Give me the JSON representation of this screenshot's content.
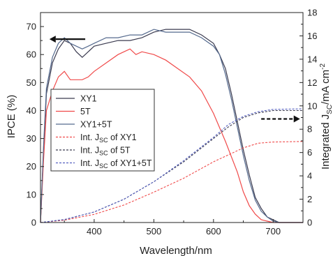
{
  "chart_data": {
    "type": "line",
    "xlabel": "Wavelength/nm",
    "ylabel_left": "IPCE (%)",
    "ylabel_right": "Integrated J",
    "ylabel_right_sub": "SC",
    "ylabel_right_unit": "/mA cm",
    "ylabel_right_sup": "-2",
    "xlim": [
      310,
      750
    ],
    "ylim_left": [
      0,
      75
    ],
    "ylim_right": [
      0,
      18
    ],
    "x_ticks": [
      400,
      500,
      600,
      700
    ],
    "y_ticks_left": [
      0,
      10,
      20,
      30,
      40,
      50,
      60,
      70
    ],
    "y_ticks_right": [
      0,
      2,
      4,
      6,
      8,
      10,
      12,
      14,
      16,
      18
    ],
    "legend": [
      {
        "name": "XY1",
        "color": "#3a3a4f",
        "dash": false,
        "sub": ""
      },
      {
        "name": "5T",
        "color": "#f04a4a",
        "dash": false,
        "sub": ""
      },
      {
        "name": "XY1+5T",
        "color": "#556a8e",
        "dash": false,
        "sub": ""
      },
      {
        "name": "Int. J",
        "sub": "SC",
        "tail": " of XY1",
        "color": "#f04a4a",
        "dash": true
      },
      {
        "name": "Int. J",
        "sub": "SC",
        "tail": " of 5T",
        "color": "#3a3a4f",
        "dash": true
      },
      {
        "name": "Int. J",
        "sub": "SC",
        "tail": " of XY1+5T",
        "color": "#5560c0",
        "dash": true
      }
    ],
    "series": [
      {
        "name": "XY1",
        "axis": "left",
        "color": "#3a3a4f",
        "dash": false,
        "x": [
          310,
          315,
          320,
          330,
          340,
          350,
          360,
          370,
          380,
          390,
          400,
          420,
          440,
          460,
          480,
          500,
          520,
          540,
          560,
          580,
          600,
          610,
          620,
          630,
          640,
          650,
          660,
          670,
          680,
          690,
          700,
          710,
          720,
          750
        ],
        "y": [
          0,
          25,
          46,
          57,
          62,
          65,
          64,
          61,
          59,
          61,
          63,
          64,
          65,
          65,
          66,
          68,
          69,
          69,
          69,
          67,
          64,
          60,
          55,
          46,
          36,
          26,
          17,
          9,
          5,
          2,
          1,
          0,
          0,
          0
        ]
      },
      {
        "name": "5T",
        "axis": "left",
        "color": "#f04a4a",
        "dash": false,
        "x": [
          310,
          315,
          320,
          330,
          340,
          350,
          360,
          370,
          380,
          390,
          400,
          420,
          440,
          460,
          470,
          480,
          500,
          520,
          540,
          560,
          580,
          600,
          620,
          640,
          650,
          660,
          670,
          680,
          690,
          700,
          710,
          720,
          750
        ],
        "y": [
          0,
          22,
          40,
          47,
          52,
          54,
          51,
          51,
          51,
          52,
          54,
          57,
          60,
          62,
          60,
          61,
          60,
          58,
          55,
          52,
          47,
          39,
          29,
          18,
          11,
          6,
          3,
          1,
          0.5,
          0,
          0,
          0,
          0
        ]
      },
      {
        "name": "XY1+5T",
        "axis": "left",
        "color": "#556a8e",
        "dash": false,
        "x": [
          310,
          315,
          320,
          330,
          340,
          350,
          360,
          370,
          380,
          390,
          400,
          420,
          440,
          460,
          480,
          500,
          520,
          540,
          560,
          580,
          600,
          610,
          620,
          630,
          640,
          650,
          660,
          670,
          680,
          690,
          700,
          710,
          720,
          750
        ],
        "y": [
          0,
          27,
          48,
          59,
          64,
          66,
          64,
          63,
          62,
          63,
          64,
          66,
          66,
          67,
          67,
          69,
          68,
          68,
          68,
          66,
          63,
          60,
          53,
          44,
          34,
          24,
          15,
          8,
          4,
          2,
          0.5,
          0,
          0,
          0
        ]
      },
      {
        "name": "Int. JSC of XY1",
        "axis": "right",
        "color": "#f04a4a",
        "dash": true,
        "x": [
          310,
          350,
          400,
          450,
          500,
          550,
          600,
          625,
          650,
          675,
          700,
          750
        ],
        "y": [
          0,
          0.2,
          0.7,
          1.5,
          2.6,
          3.8,
          5.2,
          5.8,
          6.4,
          6.8,
          6.9,
          6.95
        ]
      },
      {
        "name": "Int. JSC of 5T",
        "axis": "right",
        "color": "#3a3a4f",
        "dash": true,
        "x": [
          310,
          350,
          400,
          450,
          500,
          550,
          600,
          625,
          650,
          675,
          700,
          750
        ],
        "y": [
          0,
          0.25,
          0.9,
          2.0,
          3.5,
          5.2,
          7.2,
          8.2,
          9.0,
          9.4,
          9.6,
          9.6
        ]
      },
      {
        "name": "Int. JSC of XY1+5T",
        "axis": "right",
        "color": "#5560c0",
        "dash": true,
        "x": [
          310,
          350,
          400,
          450,
          500,
          550,
          600,
          625,
          650,
          675,
          700,
          750
        ],
        "y": [
          0,
          0.25,
          0.9,
          2.0,
          3.5,
          5.3,
          7.3,
          8.4,
          9.1,
          9.5,
          9.7,
          9.75
        ]
      }
    ],
    "annotations": [
      {
        "type": "arrow",
        "direction": "left",
        "style": "solid",
        "points_to_axis": "left",
        "x_from": 385,
        "x_to": 325,
        "y_left": 65.5
      },
      {
        "type": "arrow",
        "direction": "right",
        "style": "dashed",
        "points_to_axis": "right",
        "x_from": 680,
        "x_to": 745,
        "y_left": 37
      }
    ]
  }
}
